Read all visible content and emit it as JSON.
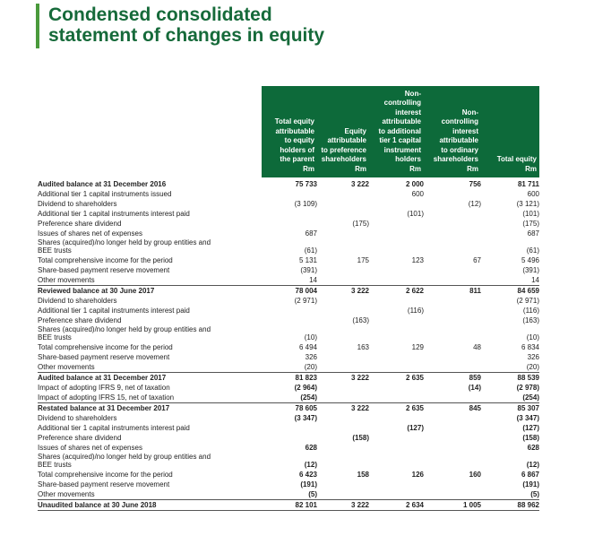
{
  "title": {
    "line1": "Condensed consolidated",
    "line2": "statement of changes in equity"
  },
  "columns": [
    "Total equity\nattributable\nto equity\nholders of\nthe parent\nRm",
    "Equity\nattributable\nto preference\nshareholders\nRm",
    "Non-\ncontrolling\ninterest\nattributable\nto additional\ntier 1 capital\ninstrument\nholders\nRm",
    "Non-\ncontrolling\ninterest\nattributable\nto ordinary\nshareholders\nRm",
    "Total equity\nRm"
  ],
  "rows": [
    {
      "label": "Audited balance at 31 December 2016",
      "bold": true,
      "values": [
        "75 733",
        "3 222",
        "2 000",
        "756",
        "81 711"
      ]
    },
    {
      "label": "Additional tier 1 capital instruments issued",
      "values": [
        "",
        "",
        "600",
        "",
        "600"
      ]
    },
    {
      "label": "Dividend to shareholders",
      "values": [
        "(3 109)",
        "",
        "",
        "(12)",
        "(3 121)"
      ]
    },
    {
      "label": "Additional tier 1 capital instruments interest paid",
      "values": [
        "",
        "",
        "(101)",
        "",
        "(101)"
      ]
    },
    {
      "label": "Preference share dividend",
      "values": [
        "",
        "(175)",
        "",
        "",
        "(175)"
      ]
    },
    {
      "label": "Issues of shares net of expenses",
      "values": [
        "687",
        "",
        "",
        "",
        "687"
      ]
    },
    {
      "label": "Shares (acquired)/no longer held by group entities and\nBEE trusts",
      "tall": true,
      "values": [
        "(61)",
        "",
        "",
        "",
        "(61)"
      ]
    },
    {
      "label": "Total comprehensive income for the period",
      "values": [
        "5 131",
        "175",
        "123",
        "67",
        "5 496"
      ]
    },
    {
      "label": "Share-based payment reserve movement",
      "values": [
        "(391)",
        "",
        "",
        "",
        "(391)"
      ]
    },
    {
      "label": "Other movements",
      "values": [
        "14",
        "",
        "",
        "",
        "14"
      ]
    },
    {
      "label": "Reviewed balance at 30 June 2017",
      "bold": true,
      "sep": true,
      "values": [
        "78 004",
        "3 222",
        "2 622",
        "811",
        "84 659"
      ]
    },
    {
      "label": "Dividend to shareholders",
      "values": [
        "(2 971)",
        "",
        "",
        "",
        "(2 971)"
      ]
    },
    {
      "label": "Additional tier 1 capital instruments interest paid",
      "values": [
        "",
        "",
        "(116)",
        "",
        "(116)"
      ]
    },
    {
      "label": "Preference share dividend",
      "values": [
        "",
        "(163)",
        "",
        "",
        "(163)"
      ]
    },
    {
      "label": "Shares (acquired)/no longer held by group entities and\nBEE trusts",
      "tall": true,
      "values": [
        "(10)",
        "",
        "",
        "",
        "(10)"
      ]
    },
    {
      "label": "Total comprehensive income for the period",
      "values": [
        "6 494",
        "163",
        "129",
        "48",
        "6 834"
      ]
    },
    {
      "label": "Share-based payment reserve movement",
      "values": [
        "326",
        "",
        "",
        "",
        "326"
      ]
    },
    {
      "label": "Other movements",
      "values": [
        "(20)",
        "",
        "",
        "",
        "(20)"
      ]
    },
    {
      "label": "Audited balance at 31 December 2017",
      "bold": true,
      "sep": true,
      "values": [
        "81 823",
        "3 222",
        "2 635",
        "859",
        "88 539"
      ]
    },
    {
      "label": "Impact of adopting IFRS 9, net of taxation",
      "values": [
        "(2 964)",
        "",
        "",
        "(14)",
        "(2 978)"
      ],
      "boldvals": true
    },
    {
      "label": "Impact of adopting IFRS 15, net of taxation",
      "values": [
        "(254)",
        "",
        "",
        "",
        "(254)"
      ],
      "boldvals": true
    },
    {
      "label": "Restated balance at 31 December 2017",
      "bold": true,
      "sep": true,
      "values": [
        "78 605",
        "3 222",
        "2 635",
        "845",
        "85 307"
      ]
    },
    {
      "label": "Dividend to shareholders",
      "values": [
        "(3 347)",
        "",
        "",
        "",
        "(3 347)"
      ],
      "boldvals": true
    },
    {
      "label": "Additional tier 1 capital instruments interest paid",
      "values": [
        "",
        "",
        "(127)",
        "",
        "(127)"
      ],
      "boldvals": true
    },
    {
      "label": "Preference share dividend",
      "values": [
        "",
        "(158)",
        "",
        "",
        "(158)"
      ],
      "boldvals": true
    },
    {
      "label": "Issues of shares net of expenses",
      "values": [
        "628",
        "",
        "",
        "",
        "628"
      ],
      "boldvals": true
    },
    {
      "label": "Shares (acquired)/no longer held by group entities and\nBEE trusts",
      "tall": true,
      "values": [
        "(12)",
        "",
        "",
        "",
        "(12)"
      ],
      "boldvals": true
    },
    {
      "label": "Total comprehensive income for the period",
      "values": [
        "6 423",
        "158",
        "126",
        "160",
        "6 867"
      ],
      "boldvals": true
    },
    {
      "label": "Share-based payment reserve movement",
      "values": [
        "(191)",
        "",
        "",
        "",
        "(191)"
      ],
      "boldvals": true
    },
    {
      "label": "Other movements",
      "values": [
        "(5)",
        "",
        "",
        "",
        "(5)"
      ],
      "boldvals": true
    },
    {
      "label": "Unaudited balance at 30 June 2018",
      "bold": true,
      "sep": true,
      "final": true,
      "values": [
        "82 101",
        "3 222",
        "2 634",
        "1 005",
        "88 962"
      ]
    }
  ]
}
